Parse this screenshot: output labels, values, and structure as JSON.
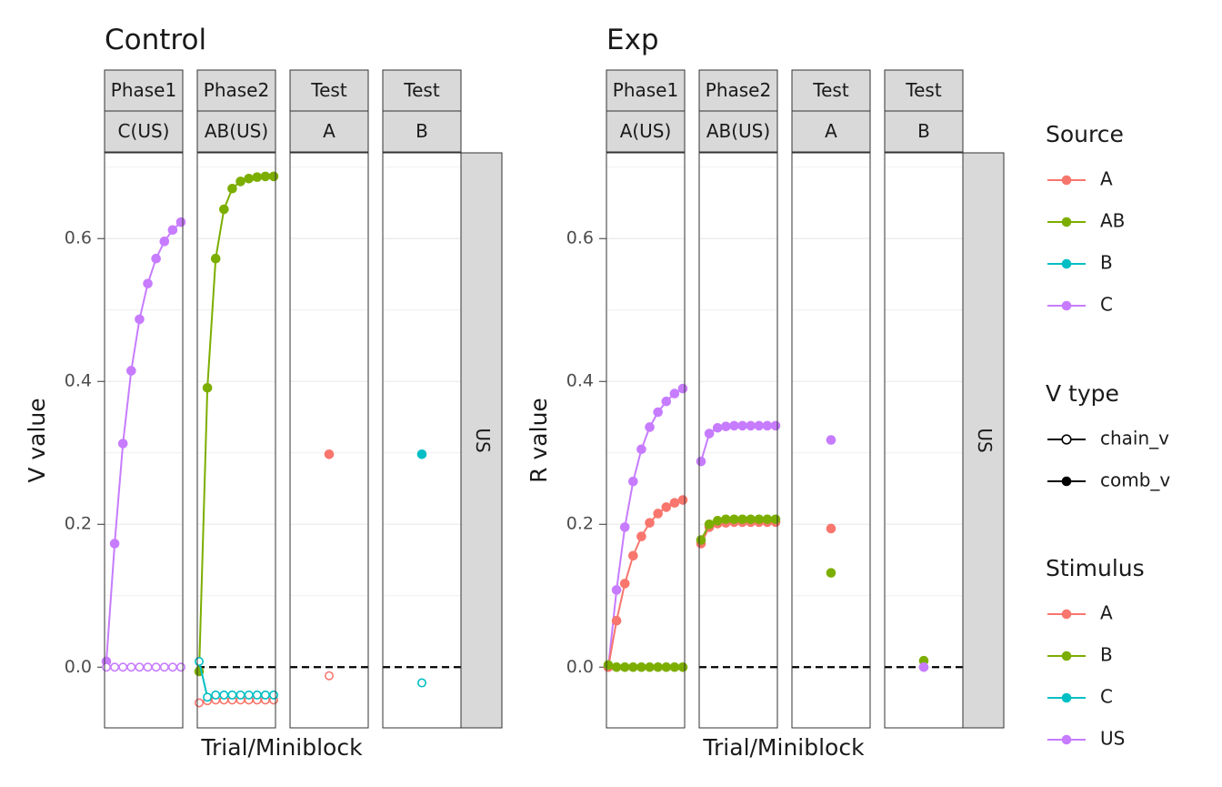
{
  "chart_data": [
    {
      "type": "line",
      "title": "Control",
      "xlabel": "Trial/Miniblock",
      "ylabel": "V value",
      "ylim": [
        -0.085,
        0.72
      ],
      "yticks": [
        0.0,
        0.2,
        0.4,
        0.6
      ],
      "ytick_labels": [
        "0.0",
        "0.2",
        "0.4",
        "0.6"
      ],
      "reference_line": {
        "y": 0,
        "style": "dashed"
      },
      "facets": [
        {
          "top": "Phase1",
          "bottom": "C(US)"
        },
        {
          "top": "Phase2",
          "bottom": "AB(US)"
        },
        {
          "top": "Test",
          "bottom": "A"
        },
        {
          "top": "Test",
          "bottom": "B"
        }
      ],
      "row_strip": "US",
      "series": [
        {
          "facet": 0,
          "source": "C",
          "vtype": "comb_v",
          "line": true,
          "values": [
            0.008,
            0.173,
            0.313,
            0.415,
            0.487,
            0.537,
            0.572,
            0.596,
            0.612,
            0.623
          ]
        },
        {
          "facet": 0,
          "source": "C",
          "vtype": "chain_v",
          "line": false,
          "values": [
            0,
            0,
            0,
            0,
            0,
            0,
            0,
            0,
            0,
            0
          ]
        },
        {
          "facet": 1,
          "source": "AB",
          "vtype": "comb_v",
          "line": true,
          "values": [
            -0.006,
            0.391,
            0.572,
            0.641,
            0.67,
            0.68,
            0.684,
            0.686,
            0.687,
            0.687
          ]
        },
        {
          "facet": 1,
          "source": "A",
          "vtype": "chain_v",
          "line": false,
          "values": [
            -0.05,
            -0.047,
            -0.046,
            -0.046,
            -0.046,
            -0.046,
            -0.046,
            -0.046,
            -0.046,
            -0.046
          ]
        },
        {
          "facet": 1,
          "source": "B",
          "vtype": "chain_v",
          "line": true,
          "values": [
            0.008,
            -0.042,
            -0.039,
            -0.039,
            -0.039,
            -0.039,
            -0.039,
            -0.039,
            -0.039,
            -0.039
          ]
        },
        {
          "facet": 2,
          "source": "A",
          "vtype": "comb_v",
          "line": false,
          "values": [
            0.298
          ]
        },
        {
          "facet": 2,
          "source": "A",
          "vtype": "chain_v",
          "line": false,
          "values": [
            -0.012
          ]
        },
        {
          "facet": 3,
          "source": "B",
          "vtype": "comb_v",
          "line": false,
          "values": [
            0.298
          ]
        },
        {
          "facet": 3,
          "source": "B",
          "vtype": "chain_v",
          "line": false,
          "values": [
            -0.022
          ]
        }
      ]
    },
    {
      "type": "line",
      "title": "Exp",
      "xlabel": "Trial/Miniblock",
      "ylabel": "R value",
      "ylim": [
        -0.085,
        0.72
      ],
      "yticks": [
        0.0,
        0.2,
        0.4,
        0.6
      ],
      "ytick_labels": [
        "0.0",
        "0.2",
        "0.4",
        "0.6"
      ],
      "reference_line": {
        "y": 0,
        "style": "dashed"
      },
      "facets": [
        {
          "top": "Phase1",
          "bottom": "A(US)"
        },
        {
          "top": "Phase2",
          "bottom": "AB(US)"
        },
        {
          "top": "Test",
          "bottom": "A"
        },
        {
          "top": "Test",
          "bottom": "B"
        }
      ],
      "row_strip": "US",
      "series": [
        {
          "facet": 0,
          "stimulus": "US",
          "line": true,
          "values": [
            0,
            0.108,
            0.196,
            0.26,
            0.305,
            0.336,
            0.357,
            0.372,
            0.383,
            0.39
          ]
        },
        {
          "facet": 0,
          "stimulus": "A",
          "line": true,
          "values": [
            0,
            0.065,
            0.117,
            0.156,
            0.183,
            0.202,
            0.215,
            0.224,
            0.23,
            0.234
          ]
        },
        {
          "facet": 0,
          "stimulus": "B",
          "line": true,
          "values": [
            0.003,
            0,
            0,
            0,
            0,
            0,
            0,
            0,
            0,
            0
          ]
        },
        {
          "facet": 1,
          "stimulus": "US",
          "line": true,
          "values": [
            0.288,
            0.327,
            0.335,
            0.337,
            0.338,
            0.338,
            0.338,
            0.338,
            0.338,
            0.338
          ]
        },
        {
          "facet": 1,
          "stimulus": "A",
          "line": true,
          "values": [
            0.173,
            0.196,
            0.201,
            0.202,
            0.203,
            0.203,
            0.203,
            0.203,
            0.203,
            0.203
          ]
        },
        {
          "facet": 1,
          "stimulus": "B",
          "line": true,
          "values": [
            0.178,
            0.2,
            0.205,
            0.207,
            0.207,
            0.207,
            0.207,
            0.207,
            0.207,
            0.207
          ]
        },
        {
          "facet": 2,
          "stimulus": "US",
          "line": false,
          "values": [
            0.318
          ]
        },
        {
          "facet": 2,
          "stimulus": "A",
          "line": false,
          "values": [
            0.194
          ]
        },
        {
          "facet": 2,
          "stimulus": "B",
          "line": false,
          "values": [
            0.132
          ]
        },
        {
          "facet": 3,
          "stimulus": "B",
          "line": false,
          "values": [
            0.009
          ]
        },
        {
          "facet": 3,
          "stimulus": "US",
          "line": false,
          "values": [
            0.0
          ]
        }
      ]
    }
  ],
  "legends": [
    {
      "title": "Source",
      "kind": "color",
      "items": [
        {
          "label": "A",
          "color": "#F8766D"
        },
        {
          "label": "AB",
          "color": "#7CAE00"
        },
        {
          "label": "B",
          "color": "#00BFC4"
        },
        {
          "label": "C",
          "color": "#C77CFF"
        }
      ]
    },
    {
      "title": "V type",
      "kind": "shape",
      "items": [
        {
          "label": "chain_v",
          "filled": false
        },
        {
          "label": "comb_v",
          "filled": true
        }
      ]
    },
    {
      "title": "Stimulus",
      "kind": "color",
      "items": [
        {
          "label": "A",
          "color": "#F8766D"
        },
        {
          "label": "B",
          "color": "#7CAE00"
        },
        {
          "label": "C",
          "color": "#00BFC4"
        },
        {
          "label": "US",
          "color": "#C77CFF"
        }
      ]
    }
  ],
  "colors": {
    "A": "#F8766D",
    "AB": "#7CAE00",
    "B": "#00BFC4",
    "C": "#C77CFF",
    "stim_A": "#F8766D",
    "stim_B": "#7CAE00",
    "stim_C": "#00BFC4",
    "stim_US": "#C77CFF",
    "strip_fill": "#D9D9D9",
    "grid": "#EBEBEB",
    "panel_border": "#333333",
    "text": "#1A1A1A",
    "tick_text": "#4D4D4D"
  }
}
